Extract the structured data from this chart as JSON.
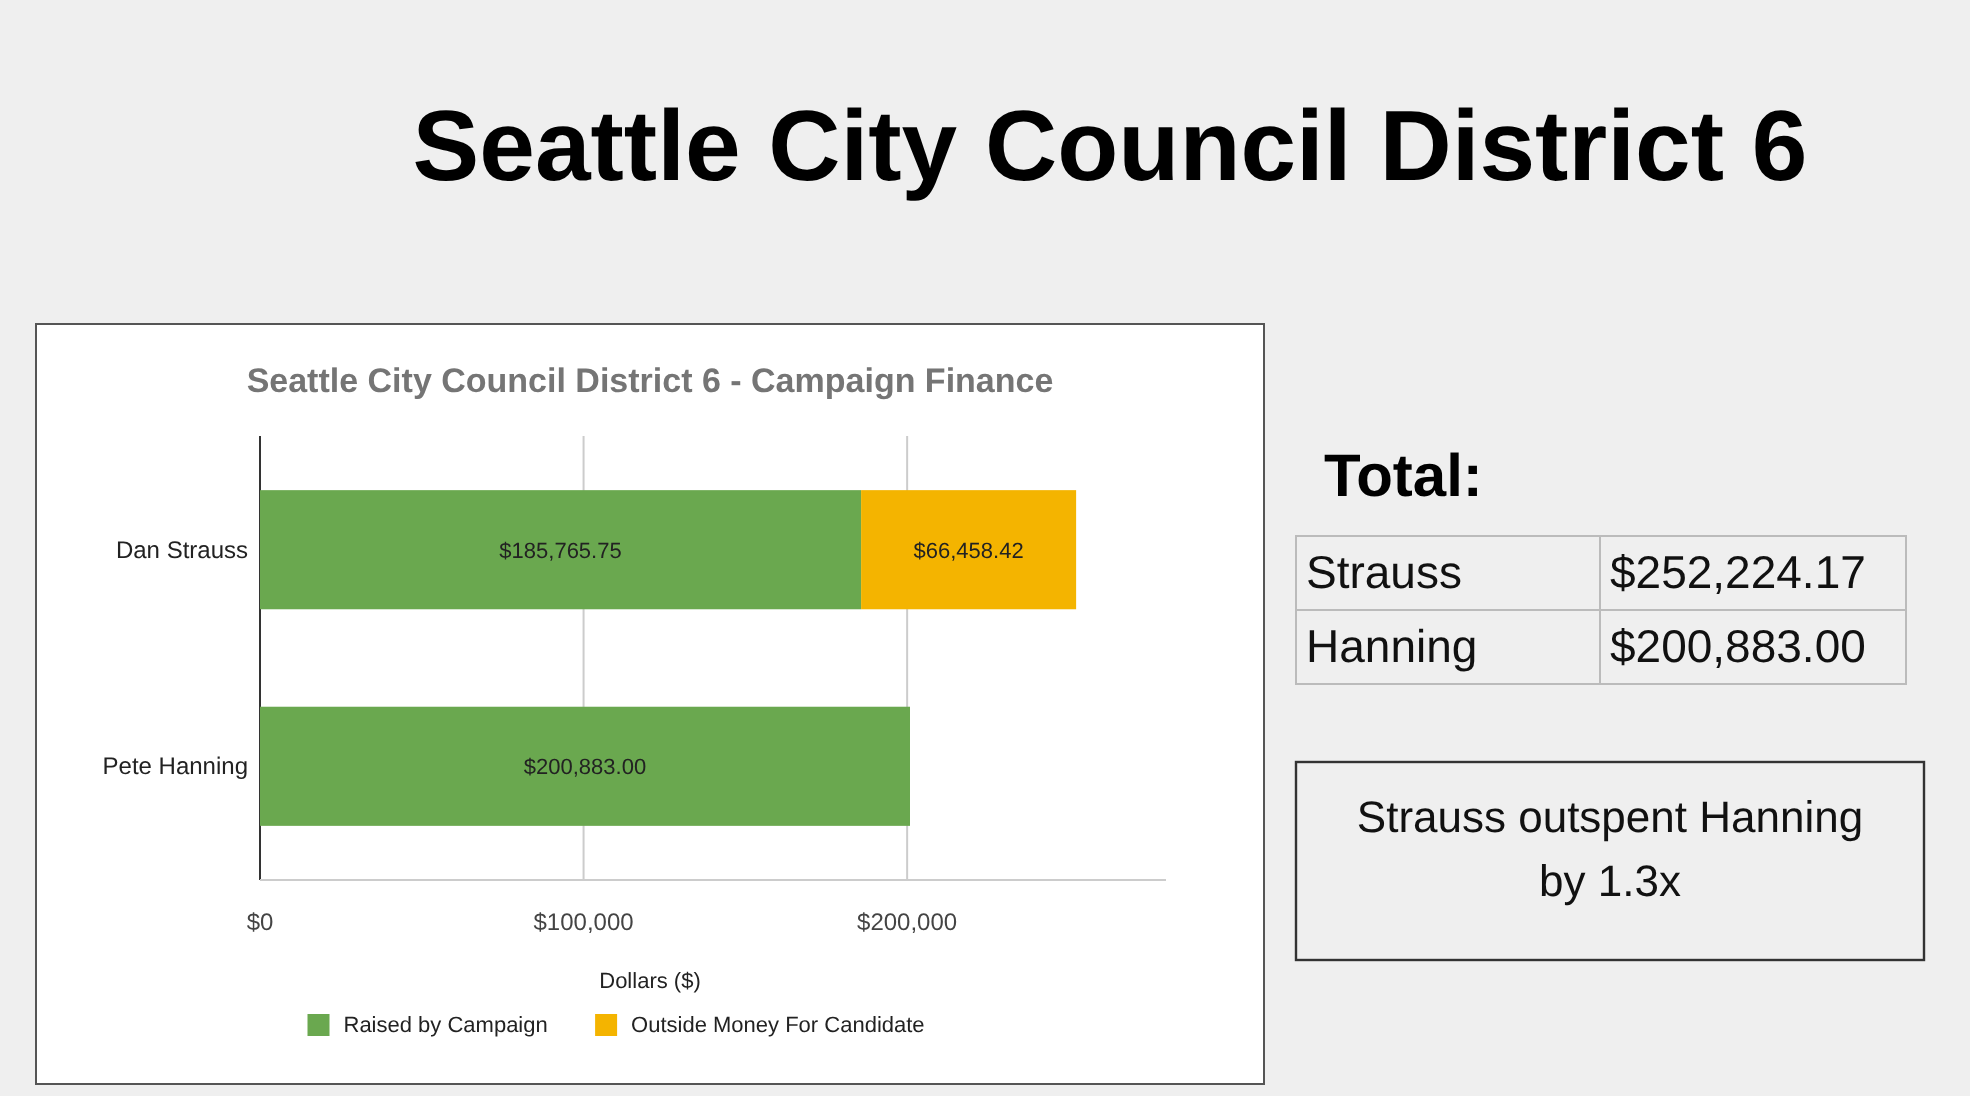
{
  "chart_data": [
    {
      "type": "other",
      "title": "Seattle City Council District 6"
    },
    {
      "type": "bar",
      "orientation": "horizontal",
      "stacked": true,
      "title": "Seattle City Council District 6 - Campaign Finance",
      "xlabel": "Dollars ($)",
      "categories": [
        "Dan Strauss",
        "Pete Hanning"
      ],
      "series": [
        {
          "name": "Raised by Campaign",
          "color": "#6aa84f",
          "values": [
            185765.75,
            200883.0
          ],
          "value_labels": [
            "$185,765.75",
            "$200,883.00"
          ]
        },
        {
          "name": "Outside Money For Candidate",
          "color": "#f4b400",
          "values": [
            66458.42,
            null
          ],
          "value_labels": [
            "$66,458.42",
            null
          ]
        }
      ],
      "xlim": [
        0,
        280000
      ],
      "xticks": [
        {
          "value": 0,
          "label": "$0"
        },
        {
          "value": 100000,
          "label": "$100,000"
        },
        {
          "value": 200000,
          "label": "$200,000"
        }
      ],
      "grid": "x",
      "legend": "bottom"
    },
    {
      "type": "other",
      "title": "Total:",
      "categories": [
        "Strauss",
        "Hanning"
      ],
      "value_labels": [
        "$252,224.17",
        "$200,883.00"
      ],
      "annotations": [
        "Strauss outspent Hanning by 1.3x"
      ]
    }
  ]
}
